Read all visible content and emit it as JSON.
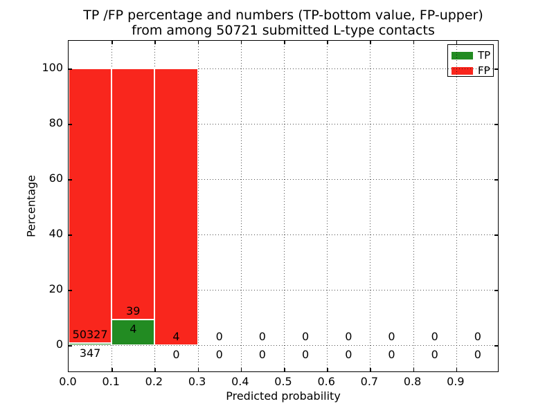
{
  "chart_data": {
    "type": "bar",
    "subtype": "stacked-percentage-histogram",
    "title": "TP /FP percentage and numbers (TP-bottom value, FP-upper) from among 50721 submitted L-type contacts",
    "title_line1": "TP /FP percentage and numbers (TP-bottom value, FP-upper)",
    "title_line2": "from among 50721 submitted L-type contacts",
    "xlabel": "Predicted probability",
    "ylabel": "Percentage",
    "xlim": [
      0.0,
      1.0
    ],
    "ylim": [
      -10,
      110
    ],
    "grid": "dotted",
    "yticks": [
      0,
      20,
      40,
      60,
      80,
      100
    ],
    "ytick_labels": [
      "0",
      "20",
      "40",
      "60",
      "80",
      "100"
    ],
    "xticks": [
      0.0,
      0.1,
      0.2,
      0.3,
      0.4,
      0.5,
      0.6,
      0.7,
      0.8,
      0.9
    ],
    "xtick_labels": [
      "0.0",
      "0.1",
      "0.2",
      "0.3",
      "0.4",
      "0.5",
      "0.6",
      "0.7",
      "0.8",
      "0.9"
    ],
    "x_gridlines": [
      0.1,
      0.2,
      0.3,
      0.4,
      0.5,
      0.6,
      0.7,
      0.8,
      0.9
    ],
    "total_submitted": 50721,
    "bins": [
      {
        "range": [
          0.0,
          0.1
        ],
        "tp": 347,
        "fp": 50327
      },
      {
        "range": [
          0.1,
          0.2
        ],
        "tp": 4,
        "fp": 39
      },
      {
        "range": [
          0.2,
          0.3
        ],
        "tp": 0,
        "fp": 4
      },
      {
        "range": [
          0.3,
          0.4
        ],
        "tp": 0,
        "fp": 0
      },
      {
        "range": [
          0.4,
          0.5
        ],
        "tp": 0,
        "fp": 0
      },
      {
        "range": [
          0.5,
          0.6
        ],
        "tp": 0,
        "fp": 0
      },
      {
        "range": [
          0.6,
          0.7
        ],
        "tp": 0,
        "fp": 0
      },
      {
        "range": [
          0.7,
          0.8
        ],
        "tp": 0,
        "fp": 0
      },
      {
        "range": [
          0.8,
          0.9
        ],
        "tp": 0,
        "fp": 0
      },
      {
        "range": [
          0.9,
          1.0
        ],
        "tp": 0,
        "fp": 0
      }
    ],
    "legend": {
      "position": "upper right",
      "entries": [
        {
          "label": "TP",
          "color": "#228b22"
        },
        {
          "label": "FP",
          "color": "#f9261d"
        }
      ]
    },
    "colors": {
      "tp": "#228b22",
      "fp": "#f9261d",
      "bar_edge": "#ffffff",
      "axes": "#000000",
      "background": "#ffffff"
    }
  }
}
